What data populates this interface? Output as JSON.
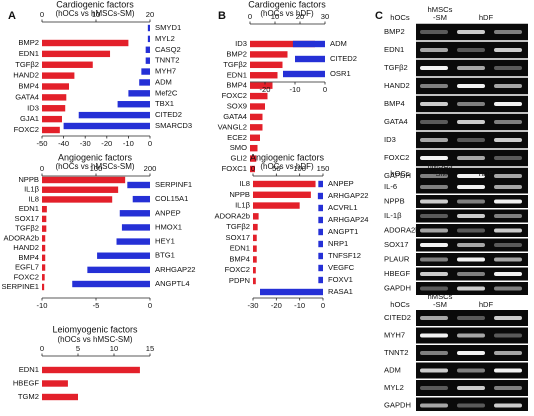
{
  "panel_labels": [
    "A",
    "B",
    "C"
  ],
  "chart_data": [
    {
      "type": "bar",
      "orientation": "horizontal",
      "title": "Cardiogenic factors",
      "subtitle": "(hOCs vs hMSCs-SM)",
      "series": [
        {
          "color": "#e3202a",
          "categories": [
            "BMP2",
            "EDN1",
            "TGFβ2",
            "HAND2",
            "BMP4",
            "GATA4",
            "ID3",
            "GJA1",
            "FOXC2"
          ],
          "values": [
            16,
            12.6,
            9.4,
            6,
            5,
            4.5,
            4.3,
            3.7,
            3.3
          ],
          "xlim": [
            0,
            20
          ],
          "xticks": [
            0,
            10,
            20
          ]
        },
        {
          "color": "#2530d6",
          "categories": [
            "SMYD1",
            "MYL2",
            "CASQ2",
            "TNNT2",
            "MYH7",
            "ADM",
            "Mef2C",
            "TBX1",
            "CITED2",
            "SMARCD3"
          ],
          "values": [
            -1,
            -1,
            -2,
            -2,
            -4,
            -5,
            -10,
            -15,
            -33,
            -40
          ],
          "xlim": [
            -50,
            0
          ],
          "xticks": [
            -50,
            -40,
            -30,
            -20,
            -10,
            0
          ]
        }
      ]
    },
    {
      "type": "bar",
      "orientation": "horizontal",
      "title": "Angiogenic factors",
      "subtitle": "(hOCs vs hMSCs-SM)",
      "series": [
        {
          "color": "#e3202a",
          "categories": [
            "NPPB",
            "IL1β",
            "IL8",
            "EDN1",
            "SOX17",
            "TGFβ2",
            "ADORA2b",
            "HAND2",
            "BMP4",
            "EGFL7",
            "FOXC2",
            "SERPINE1"
          ],
          "values": [
            154,
            141,
            130,
            9,
            8,
            8,
            6,
            6,
            6,
            6,
            5,
            4
          ],
          "xlim": [
            0,
            200
          ],
          "xticks": [
            0,
            100,
            200
          ]
        },
        {
          "color": "#2530d6",
          "categories": [
            "SERPINF1",
            "COL15A1",
            "ANPEP",
            "HMOX1",
            "HEY1",
            "BTG1",
            "ARHGAP22",
            "ANGPTL4"
          ],
          "values": [
            -2.1,
            -1.6,
            -2.8,
            -2.6,
            -3.1,
            -4.9,
            -5.8,
            -7.2
          ],
          "xlim": [
            -10,
            0
          ],
          "xticks": [
            -10,
            -5,
            0
          ]
        }
      ]
    },
    {
      "type": "bar",
      "orientation": "horizontal",
      "title": "Leiomyogenic factors",
      "subtitle": "(hOCs vs hMSC-SM)",
      "series": [
        {
          "color": "#e3202a",
          "categories": [
            "EDN1",
            "HBEGF",
            "TGM2"
          ],
          "values": [
            13.6,
            3.6,
            5
          ],
          "xlim": [
            0,
            15
          ],
          "xticks": [
            0,
            5,
            10,
            15
          ]
        }
      ]
    },
    {
      "type": "bar",
      "orientation": "horizontal",
      "title": "Cardiogenic factors",
      "subtitle": "(hOCs vs hDF)",
      "series": [
        {
          "color": "#e3202a",
          "categories": [
            "ID3",
            "BMP2",
            "TGFβ2",
            "EDN1",
            "BMP4",
            "FOXC2",
            "SOX9",
            "GATA4",
            "VANGL2",
            "ECE2",
            "SMO",
            "GLI2",
            "FOXC1"
          ],
          "values": [
            26,
            15,
            13,
            11,
            9,
            7,
            6,
            5,
            5,
            4,
            3,
            2.5,
            2
          ],
          "xlim": [
            0,
            30
          ],
          "xticks": [
            0,
            10,
            20,
            30
          ]
        },
        {
          "color": "#2530d6",
          "categories": [
            "ADM",
            "CITED2",
            "OSR1"
          ],
          "values": [
            -10.7,
            -10,
            -14
          ],
          "xlim": [
            -25,
            0
          ],
          "xticks": [
            -20,
            -10,
            0
          ]
        }
      ]
    },
    {
      "type": "bar",
      "orientation": "horizontal",
      "title": "Angiogenic factors",
      "subtitle": "(hOCs vs hDF)",
      "series": [
        {
          "color": "#e3202a",
          "categories": [
            "IL8",
            "NPPB",
            "IL1β",
            "ADORA2b",
            "TGFβ2",
            "SOX17",
            "EDN1",
            "BMP4",
            "FOXC2",
            "PDPN"
          ],
          "values": [
            134,
            124,
            100,
            12,
            10,
            8,
            8,
            8,
            6,
            6
          ],
          "xlim": [
            0,
            150
          ],
          "xticks": [
            0,
            50,
            100,
            150
          ]
        },
        {
          "color": "#2530d6",
          "categories": [
            "ANPEP",
            "ARHGAP22",
            "ACVRL1",
            "ARHGAP24",
            "ANGPT1",
            "NRP1",
            "TNFSF12",
            "VEGFC",
            "FOXV1",
            "RASA1"
          ],
          "values": [
            -2,
            -2.2,
            -2,
            -2,
            -2,
            -2,
            -2,
            -2,
            -2,
            -27
          ],
          "xlim": [
            -30,
            0
          ],
          "xticks": [
            -30,
            -20,
            -10,
            0
          ]
        }
      ]
    }
  ],
  "gels": [
    {
      "group": "hMSCs",
      "lanes": [
        "hOCs",
        "-SM",
        "hDF"
      ],
      "rows": [
        "BMP2",
        "EDN1",
        "TGFβ2",
        "HAND2",
        "BMP4",
        "GATA4",
        "ID3",
        "FOXC2",
        "GAPDH"
      ]
    },
    {
      "group": "hMSCs",
      "lanes": [
        "hOCs",
        "-SM",
        "hDF"
      ],
      "rows": [
        "IL-6",
        "NPPB",
        "IL-1β",
        "ADORA2b",
        "SOX17",
        "PLAUR",
        "HBEGF",
        "GAPDH"
      ]
    },
    {
      "group": "hMSCs",
      "lanes": [
        "hOCs",
        "-SM",
        "hDF"
      ],
      "rows": [
        "CITED2",
        "MYH7",
        "TNNT2",
        "ADM",
        "MYL2",
        "GAPDH"
      ]
    }
  ]
}
